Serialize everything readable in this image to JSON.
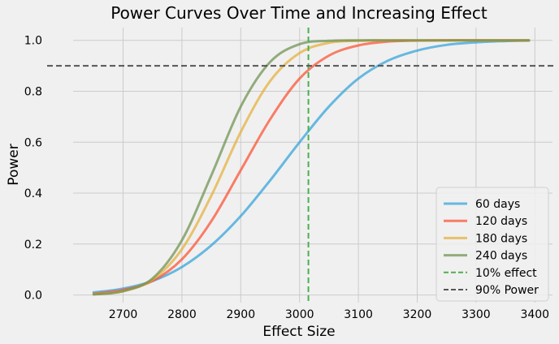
{
  "chart_data": {
    "type": "line",
    "title": "Power Curves Over Time and Increasing Effect",
    "xlabel": "Effect Size",
    "ylabel": "Power",
    "xlim": [
      2615,
      3430
    ],
    "ylim": [
      -0.03,
      1.05
    ],
    "xticks": [
      2700,
      2800,
      2900,
      3000,
      3100,
      3200,
      3300,
      3400
    ],
    "yticks": [
      0.0,
      0.2,
      0.4,
      0.6,
      0.8,
      1.0
    ],
    "xtick_labels": [
      "2700",
      "2800",
      "2900",
      "3000",
      "3100",
      "3200",
      "3300",
      "3400"
    ],
    "ytick_labels": [
      "0.0",
      "0.2",
      "0.4",
      "0.6",
      "0.8",
      "1.0"
    ],
    "grid": true,
    "legend_position": "lower-right",
    "series": [
      {
        "name": "60 days",
        "color": "#30a2da",
        "x": [
          2650,
          2700,
          2750,
          2800,
          2850,
          2900,
          2950,
          3000,
          3050,
          3100,
          3150,
          3200,
          3250,
          3300,
          3350,
          3390
        ],
        "values": [
          0.01,
          0.025,
          0.055,
          0.11,
          0.195,
          0.31,
          0.45,
          0.6,
          0.74,
          0.85,
          0.92,
          0.96,
          0.982,
          0.992,
          0.997,
          0.999
        ]
      },
      {
        "name": "120 days",
        "color": "#fc4f30",
        "x": [
          2650,
          2700,
          2750,
          2800,
          2850,
          2900,
          2950,
          3000,
          3050,
          3100,
          3150,
          3200,
          3250,
          3300,
          3350,
          3390
        ],
        "values": [
          0.005,
          0.02,
          0.055,
          0.14,
          0.29,
          0.49,
          0.69,
          0.85,
          0.94,
          0.98,
          0.995,
          0.999,
          1.0,
          1.0,
          1.0,
          1.0
        ]
      },
      {
        "name": "180 days",
        "color": "#e5ae38",
        "x": [
          2650,
          2700,
          2750,
          2800,
          2850,
          2900,
          2950,
          3000,
          3050,
          3100,
          3150,
          3200,
          3250,
          3300,
          3350,
          3390
        ],
        "values": [
          0.003,
          0.015,
          0.06,
          0.18,
          0.39,
          0.64,
          0.84,
          0.95,
          0.99,
          0.998,
          1.0,
          1.0,
          1.0,
          1.0,
          1.0,
          1.0
        ]
      },
      {
        "name": "240 days",
        "color": "#6d904f",
        "x": [
          2650,
          2700,
          2750,
          2800,
          2850,
          2900,
          2950,
          3000,
          3050,
          3100,
          3150,
          3200,
          3250,
          3300,
          3350,
          3390
        ],
        "values": [
          0.002,
          0.015,
          0.065,
          0.215,
          0.47,
          0.74,
          0.915,
          0.985,
          0.998,
          1.0,
          1.0,
          1.0,
          1.0,
          1.0,
          1.0,
          1.0
        ]
      }
    ],
    "reference_lines": [
      {
        "name": "10% effect",
        "orientation": "vertical",
        "value": 3015,
        "color": "#4caf50"
      },
      {
        "name": "90% Power",
        "orientation": "horizontal",
        "value": 0.9,
        "color": "#555555"
      }
    ]
  }
}
